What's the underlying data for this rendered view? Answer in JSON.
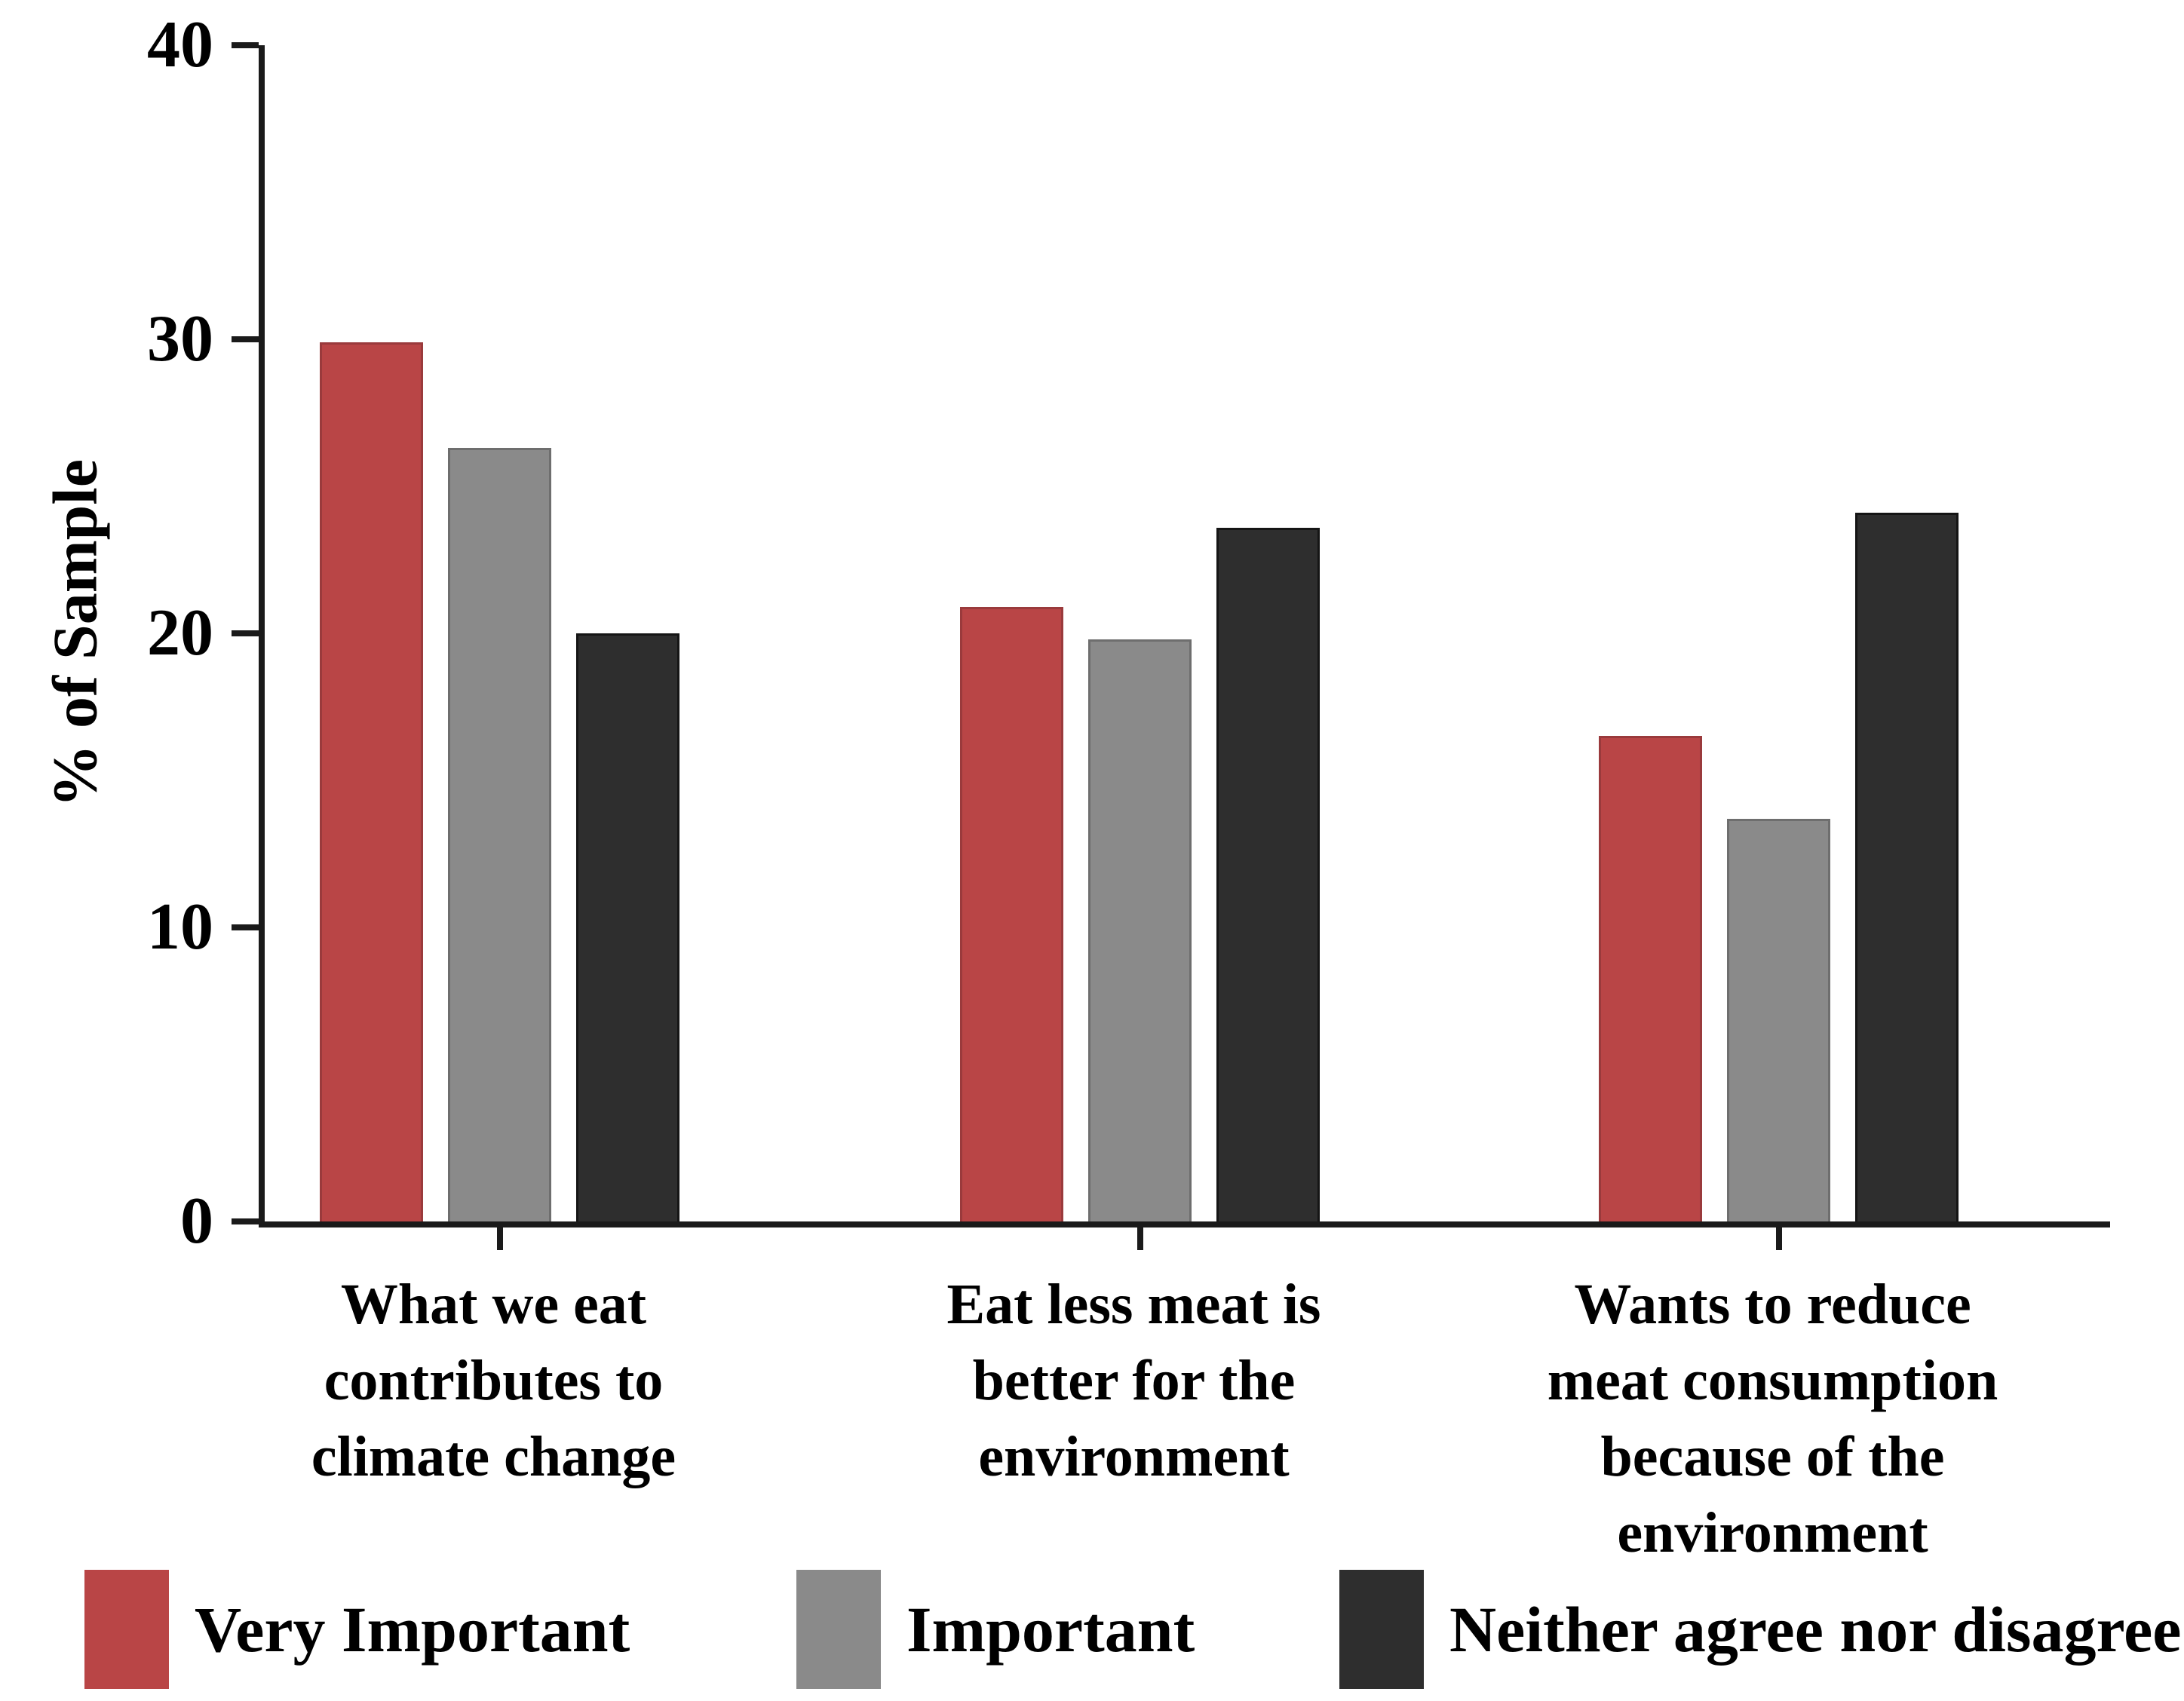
{
  "chart_data": {
    "type": "bar",
    "title": "",
    "xlabel": "",
    "ylabel": "% of Sample",
    "ylim": [
      0,
      40
    ],
    "yticks": [
      0,
      10,
      20,
      30,
      40
    ],
    "ytick_labels": [
      "0",
      "10",
      "20",
      "30",
      "40"
    ],
    "grid": false,
    "legend_position": "bottom",
    "background_color": "#ffffff",
    "axis_color": "#1a1a1a",
    "categories": [
      "What we eat\ncontributes to\nclimate change",
      "Eat less meat is\nbetter for the\nenvironment",
      "Wants to reduce\nmeat consumption\nbecause of the\nenvironment"
    ],
    "series": [
      {
        "name": "Very Important",
        "color": "#b94546",
        "border_color": "#9a3a3c",
        "values": [
          29.9,
          20.9,
          16.5
        ]
      },
      {
        "name": "Important",
        "color": "#8a8a8a",
        "border_color": "#6e6e6e",
        "values": [
          26.3,
          19.8,
          13.7
        ]
      },
      {
        "name": "Neither agree nor disagree",
        "color": "#2e2e2e",
        "border_color": "#151515",
        "values": [
          20.0,
          23.6,
          24.1
        ]
      }
    ]
  }
}
